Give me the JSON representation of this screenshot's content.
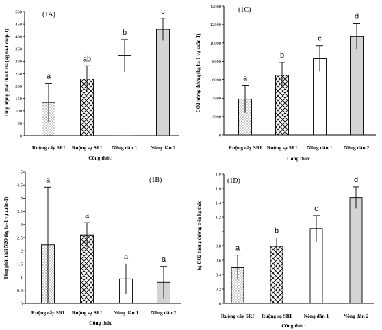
{
  "colors": {
    "axis": "#000000",
    "bar_border": "#000000",
    "gray_fill": "#d4d4d4",
    "white_fill": "#ffffff"
  },
  "chart_data": [
    {
      "type": "bar",
      "panel_label": "(1A)",
      "ylabel": "Tổng lượng phát thải CH4 (kg ha-1 crop-1)",
      "xlabel": "Công thức",
      "categories": [
        "Ruộng cấy SRI",
        "Ruộng sạ SRI",
        "Nông dân 1",
        "Nông dân 2"
      ],
      "values": [
        133,
        228,
        322,
        428
      ],
      "errors": [
        78,
        53,
        65,
        45
      ],
      "letters": [
        "a",
        "ab",
        "b",
        "c"
      ],
      "patterns": [
        "dots",
        "cross",
        "none",
        "gray"
      ],
      "ylim": [
        0,
        500
      ],
      "yticks": [
        0,
        50,
        100,
        150,
        200,
        250,
        300,
        350,
        400,
        450,
        500
      ]
    },
    {
      "type": "bar",
      "panel_label": "(1C)",
      "ylabel": "CO2 tương đương (kg ha-1 vụ xuân-1)",
      "xlabel": "Công thức",
      "categories": [
        "Ruộng cấy SRI",
        "Ruộng sạ SRI",
        "Nông dân 1",
        "Nông dân 2"
      ],
      "values": [
        3900,
        6500,
        8300,
        10700
      ],
      "errors": [
        1500,
        1400,
        1400,
        1400
      ],
      "letters": [
        "a",
        "b",
        "c",
        "d"
      ],
      "patterns": [
        "dots",
        "cross",
        "none",
        "gray"
      ],
      "ylim": [
        0,
        14000
      ],
      "yticks": [
        0,
        2000,
        4000,
        6000,
        8000,
        10000,
        12000,
        14000
      ]
    },
    {
      "type": "bar",
      "panel_label": "(1B)",
      "ylabel": "Tổng phát thải N2O (kg ha-1 vụ xuân-1)",
      "xlabel": "Công thức",
      "categories": [
        "Ruộng cấy SRI",
        "Ruộng sạ SRI",
        "Nông dân 1",
        "Nông dân 2"
      ],
      "values": [
        2.22,
        2.6,
        0.93,
        0.8
      ],
      "errors": [
        2.2,
        0.47,
        0.57,
        0.6
      ],
      "letters": [
        "a",
        "a",
        "a",
        "a"
      ],
      "patterns": [
        "dots",
        "cross",
        "none",
        "gray"
      ],
      "ylim": [
        0,
        5
      ],
      "yticks": [
        0,
        0.5,
        1,
        1.5,
        2,
        2.5,
        3,
        3.5,
        4,
        4.5,
        5
      ]
    },
    {
      "type": "bar",
      "panel_label": "(1D)",
      "ylabel": "kg CO2 tương đương trên kg thóc",
      "xlabel": "Công thức",
      "categories": [
        "Ruộng cấy SRI",
        "Ruộng sạ SRI",
        "Nông dân 1",
        "Nông dân 2"
      ],
      "values": [
        0.5,
        0.79,
        1.04,
        1.47
      ],
      "errors": [
        0.17,
        0.12,
        0.18,
        0.15
      ],
      "letters": [
        "a",
        "b",
        "c",
        "d"
      ],
      "patterns": [
        "dots",
        "cross",
        "none",
        "gray"
      ],
      "ylim": [
        0,
        1.8
      ],
      "yticks": [
        0,
        0.2,
        0.4,
        0.6,
        0.8,
        1,
        1.2,
        1.4,
        1.6,
        1.8
      ]
    }
  ]
}
